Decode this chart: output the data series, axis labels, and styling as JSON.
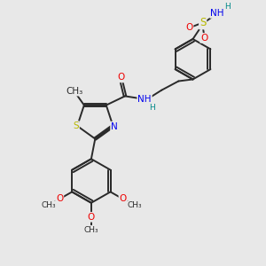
{
  "bg_color": "#e8e8e8",
  "bond_color": "#2a2a2a",
  "bond_width": 1.4,
  "atom_colors": {
    "S": "#b8b800",
    "N": "#0000ee",
    "O": "#ee0000",
    "C": "#2a2a2a",
    "H": "#008888"
  },
  "font_size": 7.5,
  "fig_size": [
    3.0,
    3.0
  ],
  "dpi": 100,
  "xlim": [
    0,
    10
  ],
  "ylim": [
    0,
    10
  ]
}
